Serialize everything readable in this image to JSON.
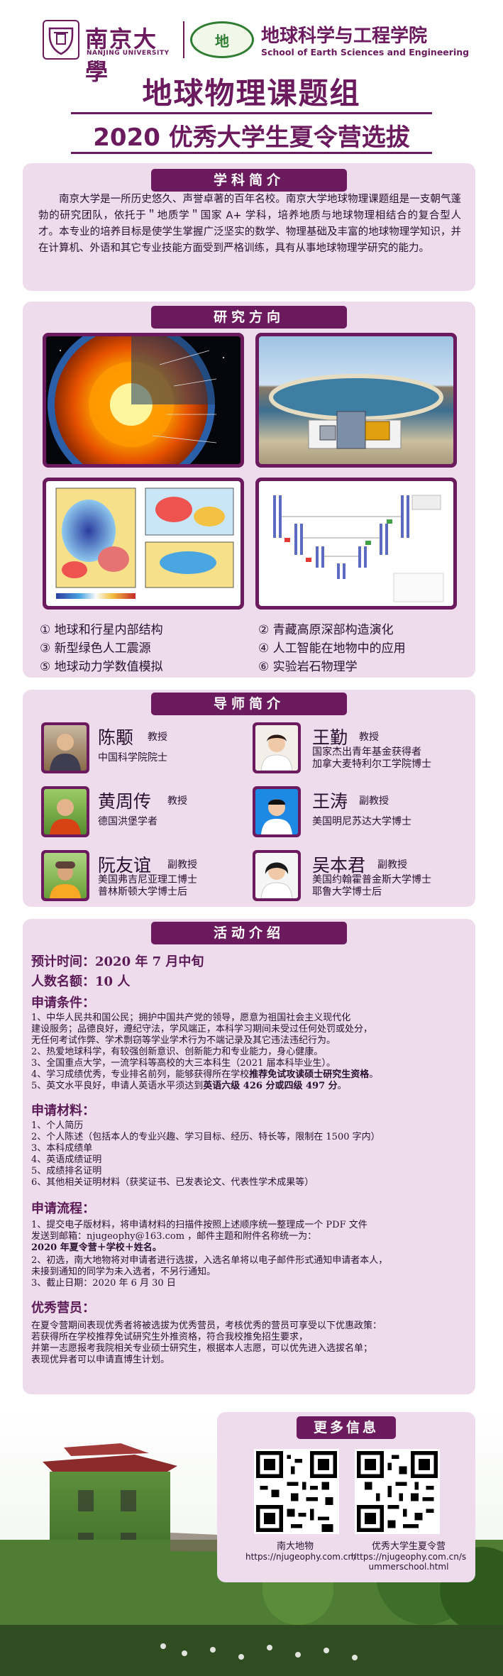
{
  "header": {
    "nju_cn": "南京大學",
    "nju_en": "NANJING UNIVERSITY",
    "school_cn": "地球科学与工程学院",
    "school_en": "School of Earth Sciences and Engineering",
    "school_logo_text": "地"
  },
  "title": {
    "main": "地球物理课题组",
    "sub": "2020 优秀大学生夏令营选拔"
  },
  "intro": {
    "label": "学科简介",
    "text": "南京大学是一所历史悠久、声誉卓著的百年名校。南京大学地球物理课题组是一支朝气蓬勃的研究团队，依托于＂地质学＂国家 A+ 学科，培养地质与地球物理相结合的复合型人才。本专业的培养目标是使学生掌握广泛坚实的数学、物理基础及丰富的地球物理学知识，并在计算机、外语和其它专业技能方面受到严格训练，具有从事地球物理学研究的能力。"
  },
  "research": {
    "label": "研究方向",
    "items": [
      "①  地球和行星内部结构",
      "②  青藏高原深部构造演化",
      "③  新型绿色人工震源",
      "④  人工智能在地物中的应用",
      "⑤  地球动力学数值模拟",
      "⑥  实验岩石物理学"
    ]
  },
  "mentors": {
    "label": "导师简介",
    "list": [
      {
        "name": "陈颙",
        "title": "教授",
        "aff": [
          "中国科学院院士"
        ]
      },
      {
        "name": "王勤",
        "title": "教授",
        "aff": [
          "国家杰出青年基金获得者",
          "加拿大麦特利尔工学院博士"
        ]
      },
      {
        "name": "黄周传",
        "title": "教授",
        "aff": [
          "德国洪堡学者"
        ]
      },
      {
        "name": "王涛",
        "title": "副教授",
        "aff": [
          "美国明尼苏达大学博士"
        ]
      },
      {
        "name": "阮友谊",
        "title": "副教授",
        "aff": [
          "美国弗吉尼亚理工博士",
          "普林斯顿大学博士后"
        ]
      },
      {
        "name": "吴本君",
        "title": "副教授",
        "aff": [
          "美国约翰霍普金斯大学博士",
          "耶鲁大学博士后"
        ]
      }
    ]
  },
  "activity": {
    "label": "活动介绍",
    "time": "预计时间：2020 年 7 月中旬",
    "quota": "人数名额：10 人",
    "cond_h": "申请条件：",
    "cond": [
      "1、中华人民共和国公民；拥护中国共产党的领导，愿意为祖国社会主义现代化",
      "    建设服务；品德良好，遵纪守法，学风端正，本科学习期间未受过任何处罚或处分，",
      "    无任何考试作弊、学术剽窃等学业学术行为不端记录及其它违法违纪行为。",
      "2、热爱地球科学，有较强创新意识、创新能力和专业能力，身心健康。",
      "3、全国重点大学，一流学科等高校的大三本科生（2021 届本科毕业生）。"
    ],
    "cond4_a": "4、学习成绩优秀，专业排名前列，能够获得所在学校",
    "cond4_b": "推荐免试攻读硕士研究生资格",
    "cond4_c": "。",
    "cond5_a": "5、英文水平良好，申请人英语水平须达到",
    "cond5_b": "英语六级 426 分或四级 497 分",
    "cond5_c": "。",
    "mat_h": "申请材料：",
    "mat": [
      "1、个人简历",
      "2、个人陈述（包括本人的专业兴趣、学习目标、经历、特长等，限制在 1500 字内）",
      "3、本科成绩单",
      "4、英语成绩证明",
      "5、成绩排名证明",
      "6、其他相关证明材料（获奖证书、已发表论文、代表性学术成果等）"
    ],
    "proc_h": "申请流程：",
    "proc1": "1、提交电子版材料，将申请材料的扫描件按照上述顺序统一整理成一个 PDF 文件",
    "proc1_b": "    发送到邮箱：njugeophy@163.com ，邮件主题和附件名称统一为：",
    "proc1_c": "    2020 年夏令营＋学校＋姓名。",
    "proc2": "2、初选，南大地物将对申请者进行选拔，入选名单将以电子邮件形式通知申请者本人，",
    "proc2_b": "    未接到通知的同学为未入选者，不另行通知。",
    "proc3": "3、截止日期：2020 年 6 月 30 日",
    "camp_h": "优秀营员：",
    "camp": [
      "在夏令营期间表现优秀者将被选拔为优秀营员，考核优秀的营员可享受以下优惠政策：",
      "若获得所在学校推荐免试研究生外推资格，符合我校推免招生要求，",
      "并第一志愿报考我院相关专业硕士研究生，根据本人志愿，可以优先进入选拔名单；",
      "表现优异者可以申请直博生计划。"
    ]
  },
  "more": {
    "label": "更多信息",
    "qr1_name": "南大地物",
    "qr1_url": "https://njugeophy.com.cn/",
    "qr2_name": "优秀大学生夏令营",
    "qr2_url_a": "https://njugeophy.com.cn/s",
    "qr2_url_b": "ummerschool.html"
  },
  "colors": {
    "primary": "#6b1a5e",
    "panel": "#eedcec"
  }
}
